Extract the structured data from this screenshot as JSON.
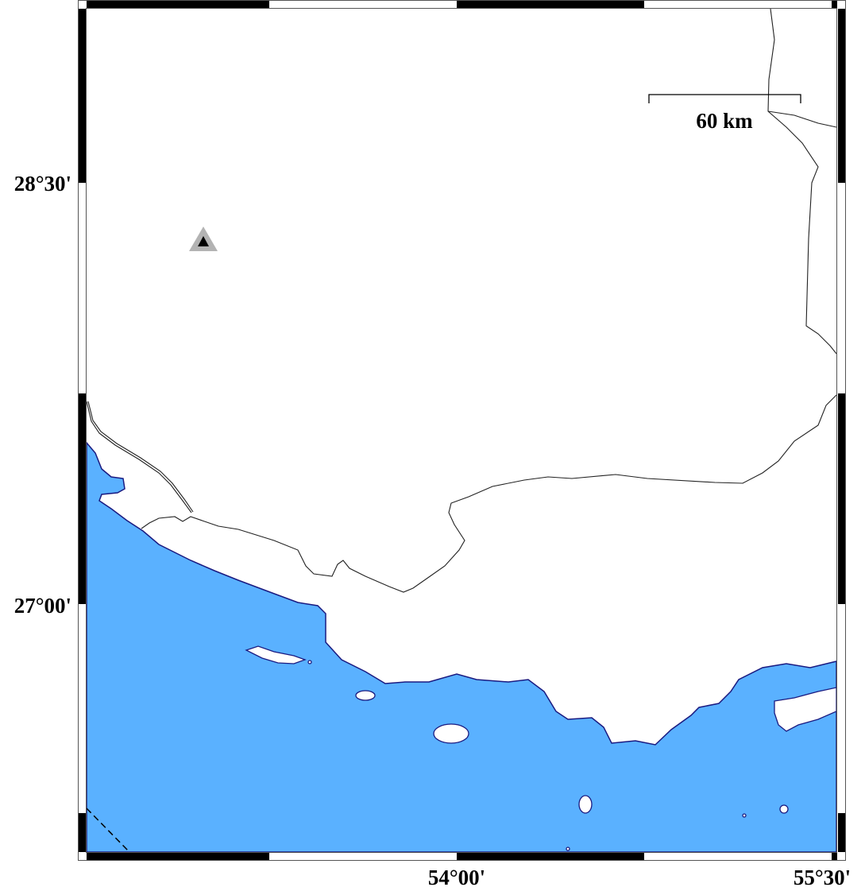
{
  "map": {
    "colors": {
      "water": "#5ab1ff",
      "land": "#ffffff",
      "coastline": "#1a1a80",
      "border": "#000000",
      "station_outer": "#b3b3b3",
      "station_inner": "#000000"
    },
    "lat_labels": [
      "28°30'",
      "27°00'"
    ],
    "lon_labels": [
      "54°00'",
      "55°30'"
    ],
    "scale_bar": {
      "label": "60 km"
    },
    "markers": [
      {
        "type": "triangle",
        "icon": "station-triangle-icon"
      }
    ]
  }
}
